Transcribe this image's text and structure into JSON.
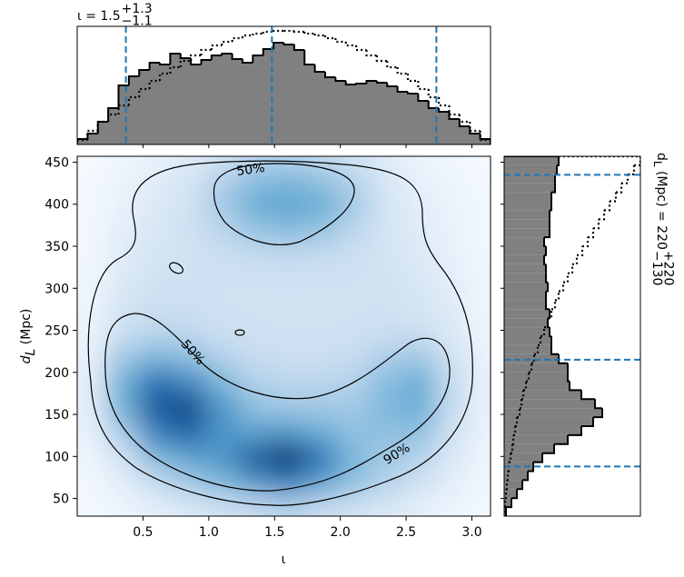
{
  "chart_data": [
    {
      "type": "histogram",
      "orientation": "vertical",
      "title": {
        "text": "ι = 1.5",
        "upper": "+1.3",
        "lower": "−1.1"
      },
      "bins": [
        0,
        0.0785,
        0.157,
        0.2356,
        0.3142,
        0.3927,
        0.4712,
        0.5498,
        0.6283,
        0.7069,
        0.7854,
        0.8639,
        0.9425,
        1.021,
        1.0996,
        1.1781,
        1.2566,
        1.3352,
        1.4137,
        1.4923,
        1.5708,
        1.6493,
        1.7279,
        1.8064,
        1.885,
        1.9635,
        2.042,
        2.1206,
        2.1991,
        2.2777,
        2.3562,
        2.4347,
        2.5133,
        2.5918,
        2.6704,
        2.7489,
        2.8274,
        2.906,
        2.9845,
        3.063,
        3.1416
      ],
      "series": [
        {
          "color": "#808080",
          "edgecolor": "#000000",
          "linestyle": "solid",
          "values": [
            6,
            12,
            25,
            40,
            65,
            75,
            82,
            90,
            88,
            100,
            95,
            88,
            93,
            98,
            100,
            94,
            90,
            98,
            105,
            112,
            110,
            104,
            88,
            80,
            74,
            70,
            66,
            67,
            70,
            68,
            64,
            58,
            56,
            48,
            40,
            36,
            28,
            20,
            12,
            6
          ]
        },
        {
          "edgecolor": "#000000",
          "linestyle": "dotted",
          "values": [
            5,
            15,
            25,
            33,
            43,
            52,
            61,
            70,
            78,
            85,
            92,
            98,
            104,
            109,
            113,
            117,
            120,
            122,
            124,
            125,
            125,
            124,
            122,
            120,
            117,
            113,
            109,
            104,
            98,
            92,
            85,
            78,
            70,
            61,
            52,
            43,
            33,
            25,
            15,
            5
          ]
        }
      ],
      "xlim": [
        0,
        3.1416
      ],
      "ylim": [
        0,
        130
      ],
      "quantiles": [
        0.37,
        1.48,
        2.73
      ],
      "quantile_color": "#1f77b4"
    },
    {
      "type": "density2d",
      "xlabel": "ι",
      "ylabel": {
        "text": "d",
        "sub": "L",
        "rest": " (Mpc)"
      },
      "xlim": [
        0,
        3.1416
      ],
      "ylim": [
        29,
        457
      ],
      "xticks": [
        0.5,
        {
          "value": 1,
          "label": "1.0"
        },
        1.5,
        {
          "value": 2,
          "label": "2.0"
        },
        2.5,
        {
          "value": 3,
          "label": "3.0"
        }
      ],
      "yticks": [
        50,
        100,
        150,
        200,
        250,
        300,
        350,
        400,
        450
      ],
      "colormap": [
        "#f7fbff",
        "#c6dbef",
        "#6baed6",
        "#2171b5",
        "#08306b"
      ],
      "contour_labels": [
        "50%",
        "50%",
        "90%"
      ],
      "density": {
        "x": [
          0.1,
          0.35,
          0.6,
          0.85,
          1.1,
          1.35,
          1.6,
          1.85,
          2.1,
          2.35,
          2.6,
          2.85,
          3.1
        ],
        "y": [
          40,
          70,
          100,
          130,
          160,
          190,
          220,
          250,
          280,
          310,
          340,
          370,
          400,
          430,
          455
        ],
        "values": [
          [
            0.02,
            0.05,
            0.1,
            0.15,
            0.2,
            0.25,
            0.3,
            0.25,
            0.2,
            0.15,
            0.1,
            0.05,
            0.02
          ],
          [
            0.03,
            0.1,
            0.25,
            0.35,
            0.45,
            0.6,
            0.7,
            0.55,
            0.4,
            0.3,
            0.2,
            0.1,
            0.03
          ],
          [
            0.05,
            0.2,
            0.45,
            0.55,
            0.6,
            0.85,
            1.0,
            0.75,
            0.45,
            0.35,
            0.3,
            0.15,
            0.05
          ],
          [
            0.08,
            0.35,
            0.7,
            0.8,
            0.6,
            0.55,
            0.6,
            0.5,
            0.4,
            0.4,
            0.4,
            0.2,
            0.06
          ],
          [
            0.1,
            0.5,
            0.85,
            0.9,
            0.6,
            0.4,
            0.35,
            0.35,
            0.35,
            0.45,
            0.5,
            0.25,
            0.07
          ],
          [
            0.1,
            0.5,
            0.75,
            0.65,
            0.45,
            0.3,
            0.28,
            0.28,
            0.3,
            0.42,
            0.5,
            0.25,
            0.07
          ],
          [
            0.08,
            0.35,
            0.45,
            0.4,
            0.3,
            0.25,
            0.22,
            0.22,
            0.25,
            0.32,
            0.35,
            0.2,
            0.06
          ],
          [
            0.06,
            0.22,
            0.28,
            0.26,
            0.22,
            0.2,
            0.2,
            0.2,
            0.2,
            0.22,
            0.22,
            0.14,
            0.05
          ],
          [
            0.05,
            0.18,
            0.22,
            0.22,
            0.2,
            0.2,
            0.2,
            0.2,
            0.2,
            0.2,
            0.18,
            0.12,
            0.04
          ],
          [
            0.04,
            0.15,
            0.2,
            0.2,
            0.2,
            0.2,
            0.2,
            0.2,
            0.2,
            0.2,
            0.16,
            0.1,
            0.04
          ],
          [
            0.03,
            0.12,
            0.18,
            0.2,
            0.22,
            0.25,
            0.26,
            0.25,
            0.22,
            0.18,
            0.14,
            0.08,
            0.03
          ],
          [
            0.03,
            0.1,
            0.16,
            0.2,
            0.28,
            0.38,
            0.42,
            0.38,
            0.28,
            0.18,
            0.12,
            0.07,
            0.02
          ],
          [
            0.02,
            0.08,
            0.14,
            0.2,
            0.35,
            0.5,
            0.55,
            0.5,
            0.35,
            0.18,
            0.1,
            0.06,
            0.02
          ],
          [
            0.02,
            0.06,
            0.12,
            0.18,
            0.3,
            0.42,
            0.45,
            0.4,
            0.3,
            0.16,
            0.08,
            0.05,
            0.02
          ],
          [
            0.01,
            0.04,
            0.08,
            0.12,
            0.2,
            0.28,
            0.3,
            0.26,
            0.2,
            0.12,
            0.06,
            0.03,
            0.01
          ]
        ]
      }
    },
    {
      "type": "histogram",
      "orientation": "horizontal",
      "title": {
        "text": "d",
        "sub": "L",
        "rest": " (Mpc) = 220",
        "upper": "+220",
        "lower": "−130"
      },
      "bins": [
        29,
        39.7,
        50.4,
        61.1,
        71.8,
        82.5,
        93.2,
        103.9,
        114.6,
        125.3,
        136,
        146.7,
        157.4,
        168.1,
        178.8,
        189.5,
        200.2,
        210.9,
        221.6,
        232.3,
        243,
        253.7,
        264.4,
        275.1,
        285.8,
        296.5,
        307.2,
        317.9,
        328.6,
        339.3,
        350,
        360.7,
        371.4,
        382.1,
        392.8,
        403.5,
        414.2,
        424.9,
        435.6,
        446.3,
        457
      ],
      "series": [
        {
          "color": "#808080",
          "edgecolor": "#000000",
          "linestyle": "solid",
          "values": [
            2,
            8,
            14,
            20,
            26,
            32,
            42,
            55,
            70,
            85,
            98,
            108,
            100,
            85,
            72,
            70,
            70,
            60,
            52,
            52,
            50,
            48,
            50,
            46,
            46,
            48,
            46,
            46,
            44,
            46,
            44,
            50,
            50,
            50,
            52,
            52,
            56,
            56,
            58,
            60
          ]
        },
        {
          "edgecolor": "#000000",
          "linestyle": "dotted",
          "values": [
            1,
            1,
            2,
            3,
            4,
            5,
            7,
            9,
            10,
            12,
            14,
            17,
            19,
            21,
            24,
            27,
            30,
            33,
            37,
            40,
            44,
            48,
            52,
            56,
            60,
            65,
            70,
            75,
            80,
            86,
            92,
            98,
            104,
            110,
            116,
            123,
            129,
            136,
            143,
            150
          ]
        }
      ],
      "xlim": [
        0,
        150
      ],
      "ylim": [
        29,
        457
      ],
      "quantiles": [
        88,
        215,
        435
      ],
      "quantile_color": "#1f77b4"
    }
  ]
}
